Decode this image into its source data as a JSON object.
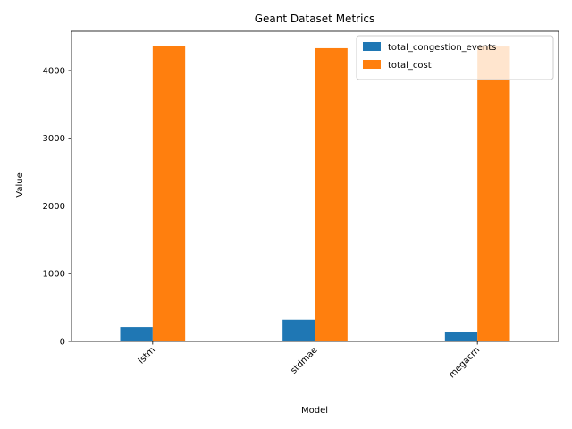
{
  "chart_data": {
    "type": "bar",
    "title": "Geant Dataset Metrics",
    "xlabel": "Model",
    "ylabel": "Value",
    "categories": [
      "lstm",
      "stdmae",
      "megacrn"
    ],
    "series": [
      {
        "name": "total_congestion_events",
        "values": [
          210,
          320,
          135
        ],
        "color": "#1f77b4"
      },
      {
        "name": "total_cost",
        "values": [
          4360,
          4330,
          4355
        ],
        "color": "#ff7f0e"
      }
    ],
    "ylim": [
      0,
      4580
    ],
    "yticks": [
      0,
      1000,
      2000,
      3000,
      4000
    ],
    "grid": false,
    "legend": "top-right",
    "xtick_rotation": 45
  }
}
